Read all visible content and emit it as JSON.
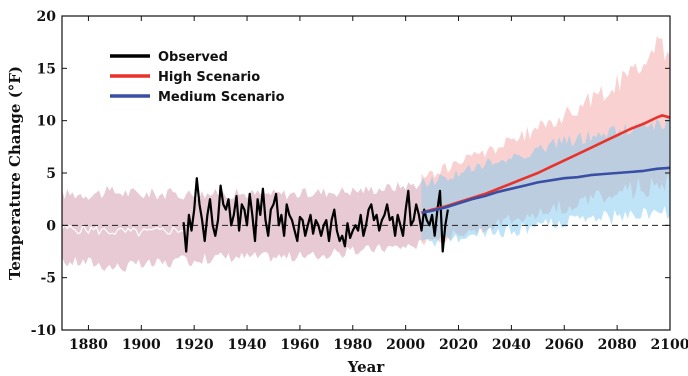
{
  "chart_data": {
    "type": "line",
    "title": "",
    "xlabel": "Year",
    "ylabel": "Temperature Change (°F)",
    "xlim": [
      1870,
      2100
    ],
    "ylim": [
      -10,
      20
    ],
    "xticks": [
      1880,
      1900,
      1920,
      1940,
      1960,
      1980,
      2000,
      2020,
      2040,
      2060,
      2080,
      2100
    ],
    "xtick_labels": [
      "1880",
      "1900",
      "1920",
      "1940",
      "1960",
      "1980",
      "2000",
      "2020",
      "2040",
      "2060",
      "2080",
      "2100"
    ],
    "yticks": [
      -10,
      -5,
      0,
      5,
      10,
      15,
      20
    ],
    "ytick_labels": [
      "-10",
      "-5",
      "0",
      "5",
      "10",
      "15",
      "20"
    ],
    "grid": false,
    "legend_position": "top-left",
    "zero_line": "dashed",
    "series": [
      {
        "name": "Observed",
        "color": "#000000",
        "x": [
          1916,
          1917,
          1918,
          1919,
          1920,
          1921,
          1922,
          1923,
          1924,
          1925,
          1926,
          1927,
          1928,
          1929,
          1930,
          1931,
          1932,
          1933,
          1934,
          1935,
          1936,
          1937,
          1938,
          1939,
          1940,
          1941,
          1942,
          1943,
          1944,
          1945,
          1946,
          1947,
          1948,
          1949,
          1950,
          1951,
          1952,
          1953,
          1954,
          1955,
          1956,
          1957,
          1958,
          1959,
          1960,
          1961,
          1962,
          1963,
          1964,
          1965,
          1966,
          1967,
          1968,
          1969,
          1970,
          1971,
          1972,
          1973,
          1974,
          1975,
          1976,
          1977,
          1978,
          1979,
          1980,
          1981,
          1982,
          1983,
          1984,
          1985,
          1986,
          1987,
          1988,
          1989,
          1990,
          1991,
          1992,
          1993,
          1994,
          1995,
          1996,
          1997,
          1998,
          1999,
          2000,
          2001,
          2002,
          2003,
          2004,
          2005,
          2006,
          2007,
          2008,
          2009,
          2010,
          2011,
          2012,
          2013,
          2014,
          2015,
          2016
        ],
        "values": [
          0.3,
          -2.5,
          1.0,
          -0.5,
          1.5,
          4.5,
          2.0,
          0.5,
          -1.5,
          1.0,
          2.5,
          0.0,
          -1.0,
          0.5,
          3.8,
          2.0,
          1.5,
          2.5,
          0.0,
          1.0,
          2.8,
          -0.5,
          2.0,
          1.5,
          0.0,
          3.0,
          1.0,
          -1.5,
          2.5,
          1.0,
          3.5,
          0.5,
          -1.0,
          1.5,
          2.0,
          3.0,
          0.0,
          1.0,
          -1.0,
          2.0,
          1.0,
          0.5,
          -0.5,
          -1.5,
          0.8,
          0.5,
          -1.0,
          0.0,
          1.0,
          -0.8,
          0.5,
          0.0,
          -1.0,
          0.0,
          0.5,
          -1.5,
          0.5,
          1.5,
          -0.5,
          -1.5,
          -1.0,
          -2.0,
          0.2,
          -1.2,
          -0.5,
          0.0,
          -0.5,
          1.0,
          -1.0,
          0.0,
          1.5,
          2.0,
          0.5,
          1.0,
          -0.5,
          0.5,
          1.0,
          2.0,
          0.5,
          0.8,
          -1.0,
          1.0,
          0.0,
          -1.0,
          1.5,
          3.3,
          0.0,
          0.5,
          2.0,
          1.0,
          -0.5,
          1.5,
          0.5,
          0.0,
          1.0,
          -1.0,
          1.5,
          3.3,
          -2.5,
          0.0,
          1.5
        ]
      },
      {
        "name": "High Scenario",
        "color": "#e8322a",
        "x": [
          2006,
          2010,
          2015,
          2020,
          2025,
          2030,
          2035,
          2040,
          2045,
          2050,
          2055,
          2060,
          2065,
          2070,
          2075,
          2080,
          2085,
          2090,
          2095,
          2097,
          2100
        ],
        "values": [
          1.2,
          1.5,
          1.8,
          2.2,
          2.6,
          3.0,
          3.5,
          4.0,
          4.5,
          5.0,
          5.6,
          6.2,
          6.8,
          7.4,
          8.0,
          8.6,
          9.2,
          9.7,
          10.3,
          10.5,
          10.3
        ]
      },
      {
        "name": "Medium Scenario",
        "color": "#3a4fa3",
        "x": [
          2006,
          2010,
          2015,
          2020,
          2025,
          2030,
          2035,
          2040,
          2045,
          2050,
          2055,
          2060,
          2065,
          2070,
          2075,
          2080,
          2085,
          2090,
          2095,
          2100
        ],
        "values": [
          1.2,
          1.4,
          1.7,
          2.1,
          2.5,
          2.8,
          3.2,
          3.5,
          3.8,
          4.1,
          4.3,
          4.5,
          4.6,
          4.8,
          4.9,
          5.0,
          5.1,
          5.2,
          5.4,
          5.5
        ]
      }
    ],
    "uncertainty_bands": [
      {
        "of": "Model simulations (historical)",
        "color": "#c9899e",
        "opacity": 0.45,
        "x": [
          1870,
          1880,
          1890,
          1900,
          1910,
          1920,
          1930,
          1940,
          1950,
          1960,
          1970,
          1980,
          1990,
          2000,
          2006
        ],
        "lower": [
          -3.5,
          -3.5,
          -4.0,
          -3.8,
          -3.6,
          -3.3,
          -3.0,
          -3.0,
          -3.0,
          -3.0,
          -2.8,
          -2.5,
          -2.2,
          -2.0,
          -1.8
        ],
        "upper": [
          3.0,
          3.0,
          3.2,
          3.0,
          3.0,
          3.0,
          3.0,
          3.0,
          3.0,
          3.0,
          3.2,
          3.3,
          3.5,
          3.8,
          4.0
        ],
        "mean": [
          -0.3,
          -0.4,
          -0.6,
          -0.7,
          -0.5,
          -0.3,
          -0.2,
          -0.1,
          0.0,
          0.0,
          0.1,
          0.2,
          0.4,
          0.8,
          1.0
        ],
        "mean_color": "#ffffff"
      },
      {
        "of": "High Scenario",
        "color": "#f39a9a",
        "opacity": 0.45,
        "x": [
          2006,
          2020,
          2040,
          2060,
          2080,
          2095,
          2100
        ],
        "lower": [
          -1.5,
          -0.8,
          0.5,
          1.8,
          3.0,
          4.0,
          4.2
        ],
        "upper": [
          4.5,
          6.0,
          8.0,
          10.5,
          13.5,
          17.0,
          16.5
        ]
      },
      {
        "of": "Medium Scenario",
        "color": "#7fcaf0",
        "opacity": 0.5,
        "x": [
          2006,
          2020,
          2040,
          2060,
          2080,
          2095,
          2100
        ],
        "lower": [
          -1.8,
          -1.2,
          -0.5,
          0.3,
          0.8,
          1.2,
          1.3
        ],
        "upper": [
          4.0,
          5.0,
          6.5,
          8.0,
          9.0,
          9.8,
          10.0
        ]
      }
    ]
  }
}
